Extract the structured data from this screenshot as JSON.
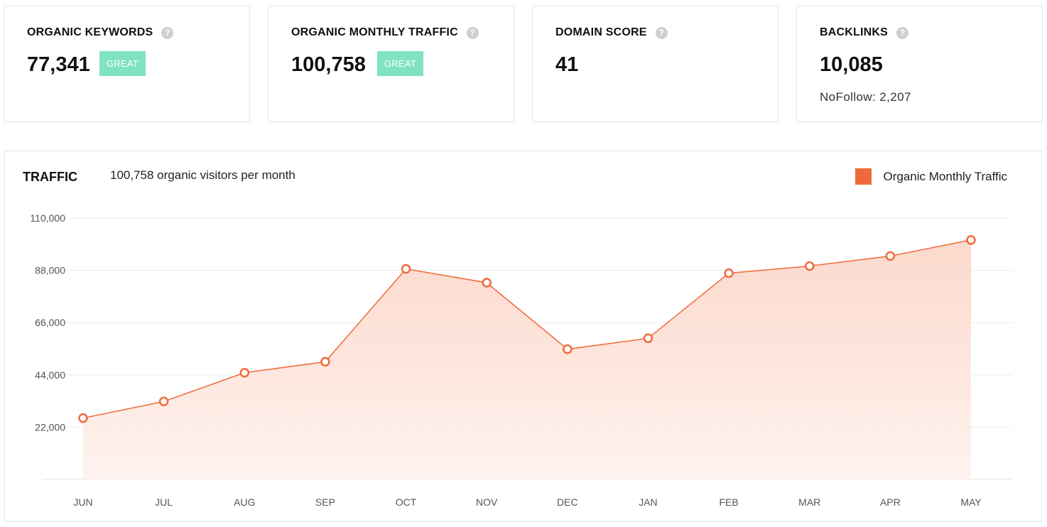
{
  "cards": [
    {
      "label": "ORGANIC KEYWORDS",
      "value": "77,341",
      "badge": "GREAT"
    },
    {
      "label": "ORGANIC MONTHLY TRAFFIC",
      "value": "100,758",
      "badge": "GREAT"
    },
    {
      "label": "DOMAIN SCORE",
      "value": "41"
    },
    {
      "label": "BACKLINKS",
      "value": "10,085",
      "sub": "NoFollow: 2,207"
    }
  ],
  "help_icon": "?",
  "traffic": {
    "title": "TRAFFIC",
    "subtitle": "100,758 organic visitors per month",
    "legend": "Organic Monthly Traffic"
  },
  "colors": {
    "accent": "#ef6a3a",
    "fill": "#fde3da",
    "badge": "#7fe3bf"
  },
  "chart_data": {
    "type": "area",
    "categories": [
      "JUN",
      "JUL",
      "AUG",
      "SEP",
      "OCT",
      "NOV",
      "DEC",
      "JAN",
      "FEB",
      "MAR",
      "APR",
      "MAY"
    ],
    "series": [
      {
        "name": "Organic Monthly Traffic",
        "values": [
          25800,
          32800,
          44900,
          49500,
          88600,
          82800,
          54800,
          59400,
          86800,
          89800,
          94000,
          100758
        ]
      }
    ],
    "yticks": [
      "22,000",
      "44,000",
      "66,000",
      "88,000",
      "110,000"
    ],
    "ytick_values": [
      22000,
      44000,
      66000,
      88000,
      110000
    ],
    "ylim": [
      0,
      110000
    ],
    "grid": true,
    "legend_position": "top-right"
  }
}
